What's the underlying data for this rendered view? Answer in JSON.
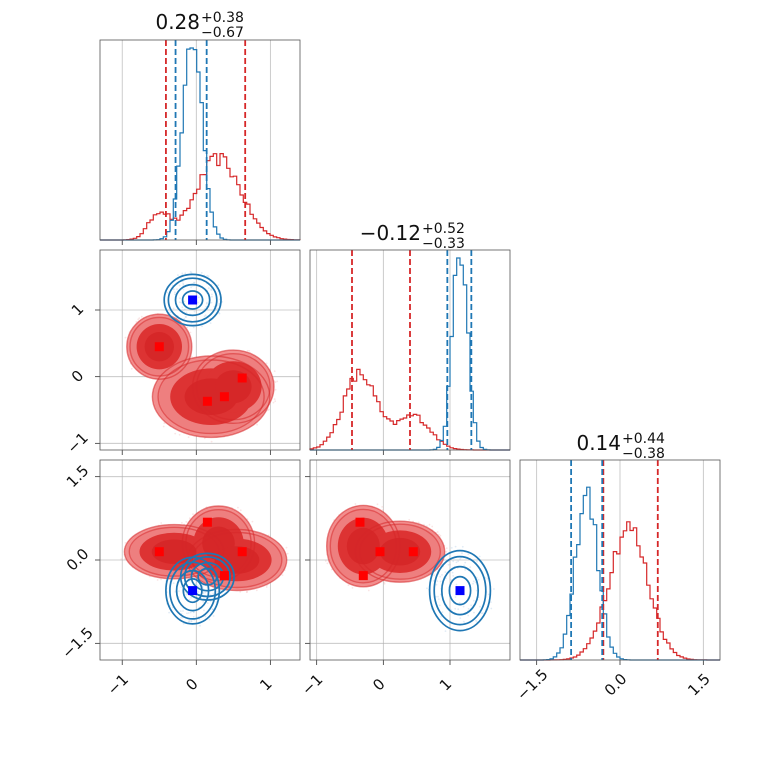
{
  "chart_data": {
    "type": "corner",
    "colors": {
      "blue": "#1f77b4",
      "red": "#d62728",
      "blue_marker": "#0000ff",
      "red_marker": "#ff0000"
    },
    "parameters": [
      {
        "range": [
          -1.3,
          1.4
        ],
        "ticks": [
          -1,
          0,
          1
        ],
        "tick_labels": [
          "−1",
          "0",
          "1"
        ]
      },
      {
        "range": [
          -1.1,
          1.9
        ],
        "ticks": [
          -1,
          0,
          1
        ],
        "tick_labels": [
          "−1",
          "0",
          "1"
        ]
      },
      {
        "range": [
          -1.8,
          1.8
        ],
        "ticks": [
          -1.5,
          0.0,
          1.5
        ],
        "tick_labels": [
          "−1.5",
          "0.0",
          "1.5"
        ]
      }
    ],
    "titles": [
      {
        "main": "0.28",
        "plus": "+0.38",
        "minus": "−0.67"
      },
      {
        "main": "−0.12",
        "plus": "+0.52",
        "minus": "−0.33"
      },
      {
        "main": "0.14",
        "plus": "+0.44",
        "minus": "−0.38"
      }
    ],
    "hist1d": [
      {
        "red_lines": [
          -0.41,
          0.66
        ],
        "blue_lines": [
          -0.28,
          0.14
        ],
        "blue_components": [
          {
            "mu": -0.05,
            "sigma": 0.13,
            "w": 1.0
          }
        ],
        "red_components": [
          {
            "mu": -0.5,
            "sigma": 0.14,
            "w": 0.33
          },
          {
            "mu": 0.3,
            "sigma": 0.3,
            "w": 1.0
          }
        ]
      },
      {
        "red_lines": [
          -0.47,
          0.4
        ],
        "blue_lines": [
          0.96,
          1.32
        ],
        "blue_components": [
          {
            "mu": 1.15,
            "sigma": 0.11,
            "w": 1.0
          }
        ],
        "red_components": [
          {
            "mu": -0.35,
            "sigma": 0.25,
            "w": 1.0
          },
          {
            "mu": 0.45,
            "sigma": 0.25,
            "w": 0.45
          }
        ]
      },
      {
        "red_lines": [
          -0.3,
          0.68
        ],
        "blue_lines": [
          -0.88,
          -0.32
        ],
        "blue_components": [
          {
            "mu": -0.6,
            "sigma": 0.2,
            "w": 1.0
          }
        ],
        "red_components": [
          {
            "mu": 0.15,
            "sigma": 0.35,
            "w": 1.0
          }
        ]
      }
    ],
    "hist2d": [
      {
        "x_param": 0,
        "y_param": 1,
        "blue_blobs": [
          {
            "cx": -0.05,
            "cy": 1.15,
            "rx": 0.32,
            "ry": 0.32
          }
        ],
        "red_blobs": [
          {
            "cx": -0.5,
            "cy": 0.45,
            "rx": 0.36,
            "ry": 0.4
          },
          {
            "cx": 0.2,
            "cy": -0.3,
            "rx": 0.65,
            "ry": 0.5
          },
          {
            "cx": 0.5,
            "cy": -0.15,
            "rx": 0.45,
            "ry": 0.45
          }
        ],
        "blue_markers": [
          {
            "x": -0.05,
            "y": 1.15
          }
        ],
        "red_markers": [
          {
            "x": -0.5,
            "y": 0.45
          },
          {
            "x": 0.15,
            "y": -0.37
          },
          {
            "x": 0.38,
            "y": -0.3
          },
          {
            "x": 0.62,
            "y": -0.02
          }
        ]
      },
      {
        "x_param": 0,
        "y_param": 2,
        "blue_blobs": [
          {
            "cx": -0.05,
            "cy": -0.55,
            "rx": 0.3,
            "ry": 0.5
          },
          {
            "cx": 0.15,
            "cy": -0.3,
            "rx": 0.3,
            "ry": 0.35
          }
        ],
        "red_blobs": [
          {
            "cx": -0.3,
            "cy": 0.15,
            "rx": 0.55,
            "ry": 0.4
          },
          {
            "cx": 0.3,
            "cy": 0.3,
            "rx": 0.4,
            "ry": 0.55
          },
          {
            "cx": 0.55,
            "cy": 0.0,
            "rx": 0.55,
            "ry": 0.45
          }
        ],
        "blue_markers": [
          {
            "x": -0.05,
            "y": -0.55
          }
        ],
        "red_markers": [
          {
            "x": -0.5,
            "y": 0.15
          },
          {
            "x": 0.15,
            "y": 0.68
          },
          {
            "x": 0.62,
            "y": 0.15
          },
          {
            "x": 0.38,
            "y": -0.28
          }
        ]
      },
      {
        "x_param": 1,
        "y_param": 2,
        "blue_blobs": [
          {
            "cx": 1.15,
            "cy": -0.55,
            "rx": 0.38,
            "ry": 0.6
          }
        ],
        "red_blobs": [
          {
            "cx": -0.3,
            "cy": 0.25,
            "rx": 0.45,
            "ry": 0.6
          },
          {
            "cx": 0.25,
            "cy": 0.15,
            "rx": 0.55,
            "ry": 0.45
          }
        ],
        "blue_markers": [
          {
            "x": 1.15,
            "y": -0.55
          }
        ],
        "red_markers": [
          {
            "x": -0.35,
            "y": 0.68
          },
          {
            "x": -0.05,
            "y": 0.15
          },
          {
            "x": 0.45,
            "y": 0.15
          },
          {
            "x": -0.3,
            "y": -0.28
          }
        ]
      }
    ]
  }
}
